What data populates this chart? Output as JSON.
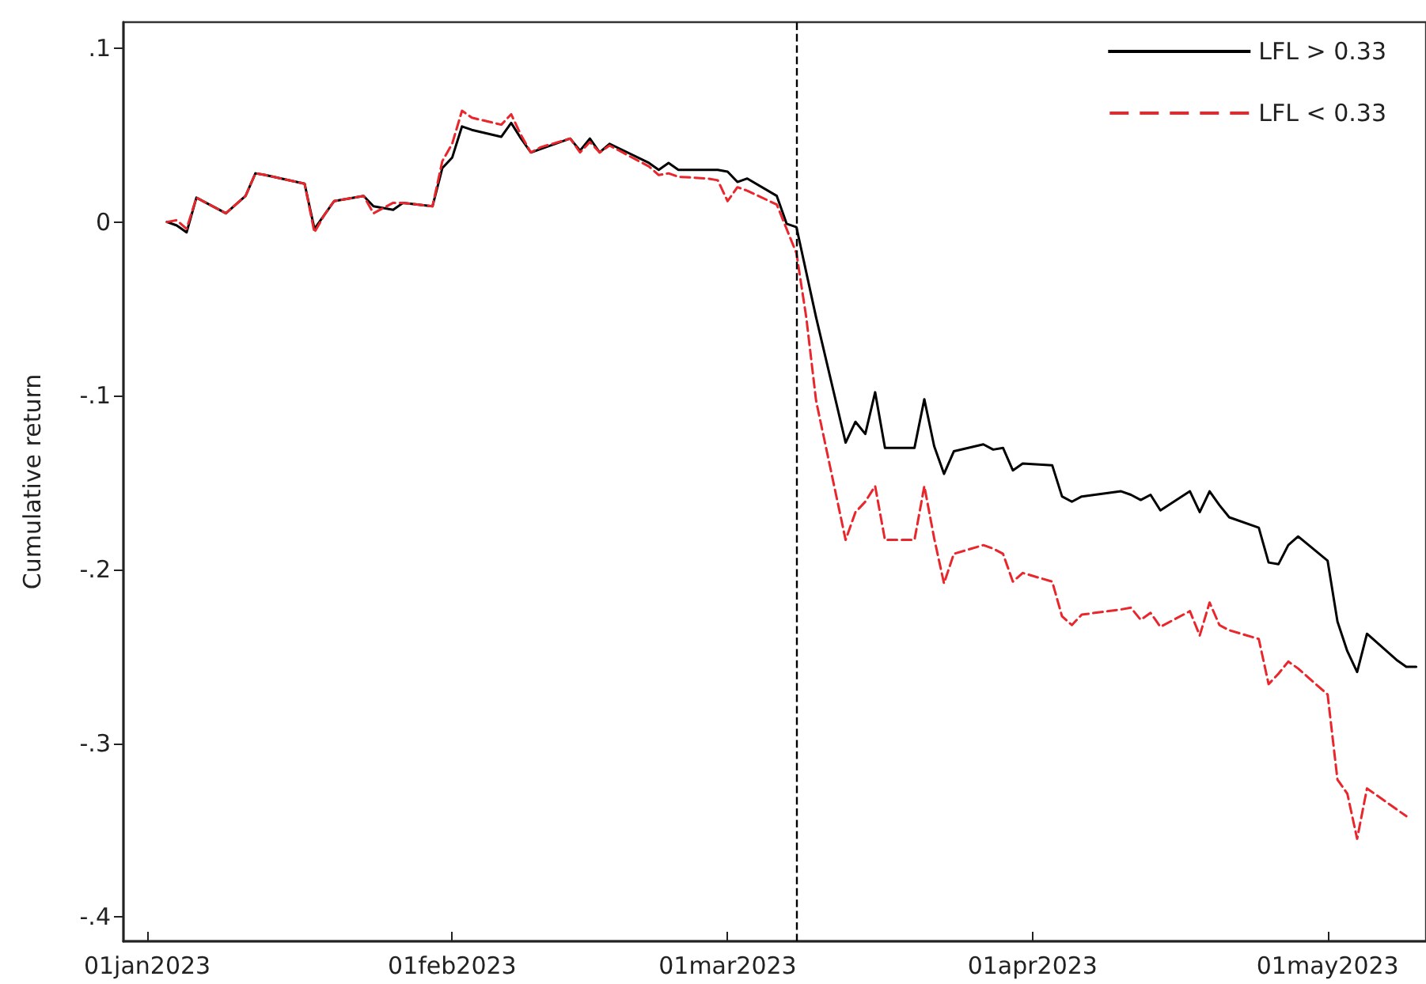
{
  "chart_data": {
    "type": "line",
    "ylabel": "Cumulative return",
    "x": [
      "2023-01-03",
      "2023-01-04",
      "2023-01-05",
      "2023-01-06",
      "2023-01-09",
      "2023-01-10",
      "2023-01-11",
      "2023-01-12",
      "2023-01-13",
      "2023-01-17",
      "2023-01-18",
      "2023-01-19",
      "2023-01-20",
      "2023-01-23",
      "2023-01-24",
      "2023-01-25",
      "2023-01-26",
      "2023-01-27",
      "2023-01-30",
      "2023-01-31",
      "2023-02-01",
      "2023-02-02",
      "2023-02-03",
      "2023-02-06",
      "2023-02-07",
      "2023-02-08",
      "2023-02-09",
      "2023-02-10",
      "2023-02-13",
      "2023-02-14",
      "2023-02-15",
      "2023-02-16",
      "2023-02-17",
      "2023-02-21",
      "2023-02-22",
      "2023-02-23",
      "2023-02-24",
      "2023-02-27",
      "2023-02-28",
      "2023-03-01",
      "2023-03-02",
      "2023-03-03",
      "2023-03-06",
      "2023-03-07",
      "2023-03-08",
      "2023-03-09",
      "2023-03-10",
      "2023-03-13",
      "2023-03-14",
      "2023-03-15",
      "2023-03-16",
      "2023-03-17",
      "2023-03-20",
      "2023-03-21",
      "2023-03-22",
      "2023-03-23",
      "2023-03-24",
      "2023-03-27",
      "2023-03-28",
      "2023-03-29",
      "2023-03-30",
      "2023-03-31",
      "2023-04-03",
      "2023-04-04",
      "2023-04-05",
      "2023-04-06",
      "2023-04-10",
      "2023-04-11",
      "2023-04-12",
      "2023-04-13",
      "2023-04-14",
      "2023-04-17",
      "2023-04-18",
      "2023-04-19",
      "2023-04-20",
      "2023-04-21",
      "2023-04-24",
      "2023-04-25",
      "2023-04-26",
      "2023-04-27",
      "2023-04-28",
      "2023-05-01",
      "2023-05-02",
      "2023-05-03",
      "2023-05-04",
      "2023-05-05",
      "2023-05-08",
      "2023-05-09",
      "2023-05-10"
    ],
    "series": [
      {
        "name": "LFL > 0.33",
        "color": "#000000",
        "line_style": "solid",
        "values": [
          0.0,
          -0.002,
          -0.006,
          0.014,
          0.005,
          0.01,
          0.015,
          0.028,
          0.027,
          0.022,
          -0.004,
          0.004,
          0.012,
          0.015,
          0.009,
          0.008,
          0.007,
          0.011,
          0.009,
          0.031,
          0.037,
          0.055,
          0.053,
          0.049,
          0.057,
          0.048,
          0.04,
          0.042,
          0.048,
          0.041,
          0.048,
          0.04,
          0.045,
          0.034,
          0.03,
          0.034,
          0.03,
          0.03,
          0.03,
          0.029,
          0.023,
          0.025,
          0.015,
          -0.001,
          -0.003,
          -0.029,
          -0.055,
          -0.127,
          -0.115,
          -0.122,
          -0.098,
          -0.13,
          -0.13,
          -0.102,
          -0.129,
          -0.145,
          -0.132,
          -0.128,
          -0.131,
          -0.13,
          -0.143,
          -0.139,
          -0.14,
          -0.158,
          -0.161,
          -0.158,
          -0.155,
          -0.157,
          -0.16,
          -0.157,
          -0.166,
          -0.155,
          -0.167,
          -0.155,
          -0.163,
          -0.17,
          -0.176,
          -0.196,
          -0.197,
          -0.186,
          -0.181,
          -0.195,
          -0.23,
          -0.247,
          -0.259,
          -0.237,
          -0.252,
          -0.256,
          -0.256
        ]
      },
      {
        "name": "LFL < 0.33",
        "color": "#e8262b",
        "line_style": "dashed",
        "values": [
          0.0,
          0.001,
          -0.004,
          0.014,
          0.005,
          0.01,
          0.015,
          0.028,
          0.027,
          0.022,
          -0.006,
          0.004,
          0.012,
          0.015,
          0.005,
          0.008,
          0.011,
          0.011,
          0.009,
          0.035,
          0.045,
          0.064,
          0.06,
          0.056,
          0.062,
          0.05,
          0.04,
          0.043,
          0.048,
          0.04,
          0.046,
          0.04,
          0.044,
          0.032,
          0.027,
          0.028,
          0.026,
          0.025,
          0.024,
          0.012,
          0.02,
          0.018,
          0.01,
          -0.004,
          -0.018,
          -0.055,
          -0.103,
          -0.183,
          -0.167,
          -0.161,
          -0.152,
          -0.183,
          -0.183,
          -0.152,
          -0.182,
          -0.208,
          -0.191,
          -0.186,
          -0.188,
          -0.191,
          -0.207,
          -0.202,
          -0.207,
          -0.227,
          -0.232,
          -0.226,
          -0.223,
          -0.222,
          -0.229,
          -0.225,
          -0.233,
          -0.224,
          -0.238,
          -0.219,
          -0.232,
          -0.235,
          -0.24,
          -0.266,
          -0.26,
          -0.253,
          -0.257,
          -0.272,
          -0.321,
          -0.329,
          -0.355,
          -0.326,
          -0.338,
          -0.342,
          null
        ]
      }
    ],
    "xlim": [
      "2022-12-29T14:00",
      "2023-05-11"
    ],
    "xticks": [
      {
        "value": "2023-01-01",
        "label": "01jan2023"
      },
      {
        "value": "2023-02-01",
        "label": "01feb2023"
      },
      {
        "value": "2023-03-01",
        "label": "01mar2023"
      },
      {
        "value": "2023-04-01",
        "label": "01apr2023"
      },
      {
        "value": "2023-05-01",
        "label": "01may2023"
      }
    ],
    "ylim": [
      -0.414,
      0.115
    ],
    "yticks": [
      {
        "value": 0.1,
        "label": ".1"
      },
      {
        "value": 0,
        "label": "0"
      },
      {
        "value": -0.1,
        "label": "-.1"
      },
      {
        "value": -0.2,
        "label": "-.2"
      },
      {
        "value": -0.3,
        "label": "-.3"
      },
      {
        "value": -0.4,
        "label": "-.4"
      }
    ],
    "ref_lines": [
      {
        "axis": "x",
        "value": "2023-03-08",
        "color": "#000000",
        "line_style": "dashed"
      }
    ],
    "legend": "top right",
    "grid": false,
    "marker": "none"
  }
}
